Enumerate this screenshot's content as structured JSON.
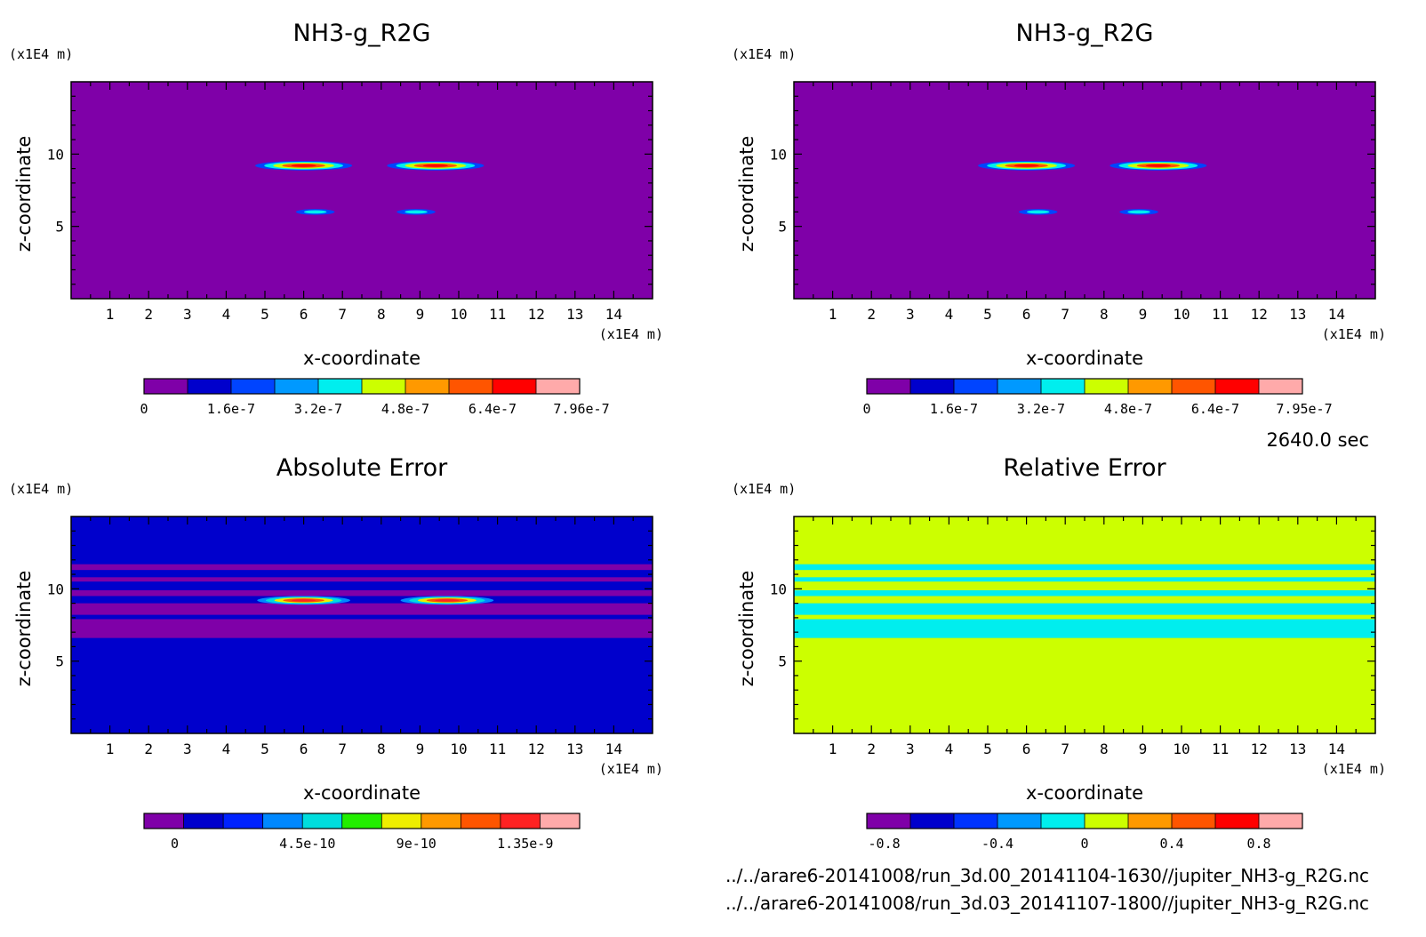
{
  "time_label": "2640.0 sec",
  "footer": {
    "file1": "../../arare6-20141008/run_3d.00_20141104-1630//jupiter_NH3-g_R2G.nc",
    "file2": "../../arare6-20141008/run_3d.03_20141107-1800//jupiter_NH3-g_R2G.nc"
  },
  "chart_data": [
    {
      "type": "heatmap",
      "title": "NH3-g_R2G",
      "xlabel": "x-coordinate",
      "ylabel": "z-coordinate",
      "x_unit": "(x1E4 m)",
      "y_unit": "(x1E4 m)",
      "xlim": [
        0,
        15
      ],
      "ylim": [
        0,
        15
      ],
      "x_ticks": [
        1,
        2,
        3,
        4,
        5,
        6,
        7,
        8,
        9,
        10,
        11,
        12,
        13,
        14
      ],
      "y_ticks": [
        5,
        10
      ],
      "background": "#7f00a8",
      "colorbar": {
        "colors": [
          "#7f00a8",
          "#0000cc",
          "#0044ff",
          "#0099ff",
          "#00eeee",
          "#ccff00",
          "#ff9900",
          "#ff5500",
          "#ff0000",
          "#ffaaaa"
        ],
        "labels": [
          "0",
          "1.6e-7",
          "3.2e-7",
          "4.8e-7",
          "6.4e-7",
          "7.96e-7"
        ]
      },
      "blobs": [
        {
          "cx": 6.0,
          "cz": 9.2,
          "rx": 1.25,
          "rz": 0.33,
          "levels": [
            "#0044ff",
            "#00eeee",
            "#ccff00",
            "#ff5500",
            "#ff0000"
          ]
        },
        {
          "cx": 9.4,
          "cz": 9.2,
          "rx": 1.25,
          "rz": 0.33,
          "levels": [
            "#0044ff",
            "#00eeee",
            "#ccff00",
            "#ff5500",
            "#ff0000"
          ]
        },
        {
          "cx": 6.3,
          "cz": 6.0,
          "rx": 0.5,
          "rz": 0.2,
          "levels": [
            "#0044ff",
            "#00eeee"
          ]
        },
        {
          "cx": 8.9,
          "cz": 6.0,
          "rx": 0.5,
          "rz": 0.2,
          "levels": [
            "#0044ff",
            "#00eeee"
          ]
        }
      ]
    },
    {
      "type": "heatmap",
      "title": "NH3-g_R2G",
      "xlabel": "x-coordinate",
      "ylabel": "z-coordinate",
      "x_unit": "(x1E4 m)",
      "y_unit": "(x1E4 m)",
      "xlim": [
        0,
        15
      ],
      "ylim": [
        0,
        15
      ],
      "x_ticks": [
        1,
        2,
        3,
        4,
        5,
        6,
        7,
        8,
        9,
        10,
        11,
        12,
        13,
        14
      ],
      "y_ticks": [
        5,
        10
      ],
      "background": "#7f00a8",
      "colorbar": {
        "colors": [
          "#7f00a8",
          "#0000cc",
          "#0044ff",
          "#0099ff",
          "#00eeee",
          "#ccff00",
          "#ff9900",
          "#ff5500",
          "#ff0000",
          "#ffaaaa"
        ],
        "labels": [
          "0",
          "1.6e-7",
          "3.2e-7",
          "4.8e-7",
          "6.4e-7",
          "7.95e-7"
        ]
      },
      "blobs": [
        {
          "cx": 6.0,
          "cz": 9.2,
          "rx": 1.25,
          "rz": 0.33,
          "levels": [
            "#0044ff",
            "#00eeee",
            "#ccff00",
            "#ff5500",
            "#ff0000"
          ]
        },
        {
          "cx": 9.4,
          "cz": 9.2,
          "rx": 1.25,
          "rz": 0.33,
          "levels": [
            "#0044ff",
            "#00eeee",
            "#ccff00",
            "#ff5500",
            "#ff0000"
          ]
        },
        {
          "cx": 6.3,
          "cz": 6.0,
          "rx": 0.5,
          "rz": 0.2,
          "levels": [
            "#0044ff",
            "#00eeee"
          ]
        },
        {
          "cx": 8.9,
          "cz": 6.0,
          "rx": 0.5,
          "rz": 0.2,
          "levels": [
            "#0044ff",
            "#00eeee"
          ]
        }
      ]
    },
    {
      "type": "heatmap",
      "title": "Absolute Error",
      "xlabel": "x-coordinate",
      "ylabel": "z-coordinate",
      "x_unit": "(x1E4 m)",
      "y_unit": "(x1E4 m)",
      "xlim": [
        0,
        15
      ],
      "ylim": [
        0,
        15
      ],
      "x_ticks": [
        1,
        2,
        3,
        4,
        5,
        6,
        7,
        8,
        9,
        10,
        11,
        12,
        13,
        14
      ],
      "y_ticks": [
        5,
        10
      ],
      "background": "#0000cc",
      "colorbar": {
        "colors": [
          "#7f00a8",
          "#0000cc",
          "#0022ff",
          "#0088ff",
          "#00dddd",
          "#22ee00",
          "#eeee00",
          "#ff9900",
          "#ff5500",
          "#ff2222",
          "#ffaaaa"
        ],
        "labels": [
          "0",
          "4.5e-10",
          "9e-10",
          "1.35e-9"
        ]
      },
      "bands": [
        {
          "z0": 11.3,
          "z1": 11.7,
          "color": "#7f00a8"
        },
        {
          "z0": 10.5,
          "z1": 10.8,
          "color": "#7f00a8"
        },
        {
          "z0": 9.5,
          "z1": 9.9,
          "color": "#7f00a8"
        },
        {
          "z0": 8.2,
          "z1": 9.0,
          "color": "#7f00a8"
        },
        {
          "z0": 6.6,
          "z1": 7.9,
          "color": "#7f00a8"
        }
      ],
      "blobs": [
        {
          "cx": 6.0,
          "cz": 9.2,
          "rx": 1.2,
          "rz": 0.3,
          "levels": [
            "#0088ff",
            "#00dddd",
            "#eeee00",
            "#ff5500",
            "#ff2222"
          ]
        },
        {
          "cx": 9.7,
          "cz": 9.2,
          "rx": 1.2,
          "rz": 0.3,
          "levels": [
            "#0088ff",
            "#00dddd",
            "#eeee00",
            "#ff5500",
            "#ff2222"
          ]
        }
      ]
    },
    {
      "type": "heatmap",
      "title": "Relative Error",
      "xlabel": "x-coordinate",
      "ylabel": "z-coordinate",
      "x_unit": "(x1E4 m)",
      "y_unit": "(x1E4 m)",
      "xlim": [
        0,
        15
      ],
      "ylim": [
        0,
        15
      ],
      "x_ticks": [
        1,
        2,
        3,
        4,
        5,
        6,
        7,
        8,
        9,
        10,
        11,
        12,
        13,
        14
      ],
      "y_ticks": [
        5,
        10
      ],
      "background": "#ccff00",
      "colorbar": {
        "colors": [
          "#7f00a8",
          "#0000cc",
          "#0033ff",
          "#0099ff",
          "#00eeee",
          "#ccff00",
          "#ff9900",
          "#ff5500",
          "#ff0000",
          "#ffaaaa"
        ],
        "labels": [
          "-0.8",
          "-0.4",
          "0",
          "0.4",
          "0.8"
        ]
      },
      "bands": [
        {
          "z0": 11.3,
          "z1": 11.7,
          "color": "#00eeee"
        },
        {
          "z0": 10.5,
          "z1": 10.8,
          "color": "#00eeee"
        },
        {
          "z0": 9.5,
          "z1": 9.9,
          "color": "#00eeee"
        },
        {
          "z0": 8.2,
          "z1": 9.0,
          "color": "#00eeee"
        },
        {
          "z0": 6.6,
          "z1": 7.9,
          "color": "#00eeee"
        }
      ],
      "blobs": []
    }
  ]
}
